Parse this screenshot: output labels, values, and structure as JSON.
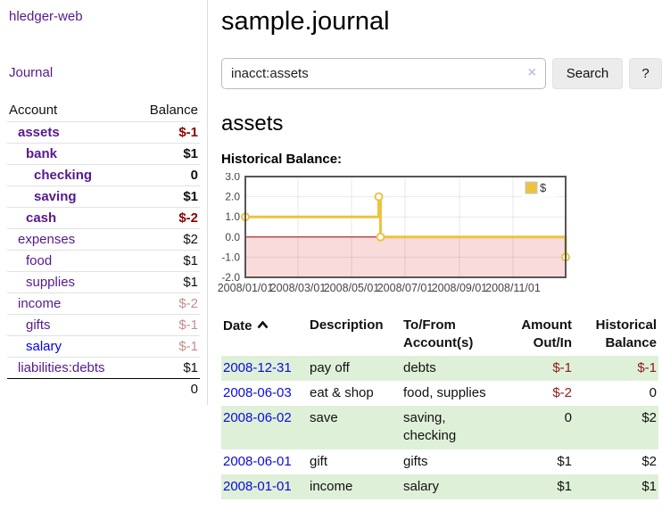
{
  "app": {
    "title": "hledger-web"
  },
  "sidebar": {
    "journal_label": "Journal",
    "accounts": {
      "headers": {
        "account": "Account",
        "balance": "Balance"
      },
      "rows": [
        {
          "name": "assets",
          "balance": "$-1"
        },
        {
          "name": "bank",
          "balance": "$1"
        },
        {
          "name": "checking",
          "balance": "0"
        },
        {
          "name": "saving",
          "balance": "$1"
        },
        {
          "name": "cash",
          "balance": "$-2"
        },
        {
          "name": "expenses",
          "balance": "$2"
        },
        {
          "name": "food",
          "balance": "$1"
        },
        {
          "name": "supplies",
          "balance": "$1"
        },
        {
          "name": "income",
          "balance": "$-2"
        },
        {
          "name": "gifts",
          "balance": "$-1"
        },
        {
          "name": "salary",
          "balance": "$-1"
        },
        {
          "name": "liabilities:debts",
          "balance": "$1"
        }
      ],
      "total": "0"
    }
  },
  "main": {
    "title": "sample.journal",
    "search": {
      "value": "inacct:assets",
      "clear_icon": "×",
      "button": "Search",
      "help": "?"
    },
    "account_heading": "assets",
    "chart_label": "Historical Balance:"
  },
  "chart_data": {
    "type": "line",
    "step": true,
    "title": "Historical Balance",
    "series": [
      {
        "name": "$",
        "color": "#edc240",
        "points": [
          [
            "2008-01-01",
            1
          ],
          [
            "2008-06-01",
            2
          ],
          [
            "2008-06-03",
            0
          ],
          [
            "2008-12-31",
            -1
          ]
        ]
      }
    ],
    "x_range": [
      "2008-01-01",
      "2008-12-31"
    ],
    "x_ticks": [
      "2008/01/01",
      "2008/03/01",
      "2008/05/01",
      "2008/07/01",
      "2008/09/01",
      "2008/11/01"
    ],
    "y_ticks": [
      "3.0",
      "2.0",
      "1.0",
      "0.0",
      "-1.0",
      "-2.0"
    ],
    "y_range": [
      -2,
      3
    ],
    "legend": "$",
    "legend_position": "top-right",
    "grid": true,
    "negative_region_fill": "#fadbdb",
    "zero_line_color": "#a00000"
  },
  "register": {
    "headers": [
      "Date",
      "Description",
      "To/From Account(s)",
      "Amount Out/In",
      "Historical Balance"
    ],
    "rows": [
      {
        "date": "2008-12-31",
        "description": "pay off",
        "accounts": "debts",
        "amount": "$-1",
        "balance": "$-1"
      },
      {
        "date": "2008-06-03",
        "description": "eat & shop",
        "accounts": "food, supplies",
        "amount": "$-2",
        "balance": "0"
      },
      {
        "date": "2008-06-02",
        "description": "save",
        "accounts": "saving, checking",
        "amount": "0",
        "balance": "$2"
      },
      {
        "date": "2008-06-01",
        "description": "gift",
        "accounts": "gifts",
        "amount": "$1",
        "balance": "$2"
      },
      {
        "date": "2008-01-01",
        "description": "income",
        "accounts": "salary",
        "amount": "$1",
        "balance": "$1"
      }
    ]
  },
  "colors": {
    "link_purple": "#551a8b",
    "link_blue": "#0000ee",
    "negative_strong": "#8b0000",
    "negative_faded": "#c28f8f",
    "register_negative": "#8b1a1a",
    "row_green": "#dff0d8",
    "chart_series_gold": "#edc240",
    "chart_negative_pink": "#fadbdb",
    "button_gray": "#ececec"
  }
}
